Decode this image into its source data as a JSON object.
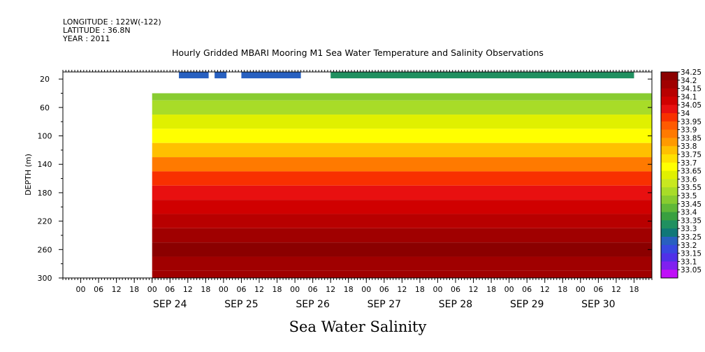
{
  "header": {
    "longitude": "LONGITUDE : 122W(-122)",
    "latitude": "LATITUDE : 36.8N",
    "year": "YEAR : 2011"
  },
  "chart_data": {
    "type": "heatmap",
    "title": "Hourly Gridded MBARI Mooring M1 Sea Water Temperature and Salinity Observations",
    "xlabel": "Sea Water Salinity",
    "ylabel": "DEPTH (m)",
    "y_ticks": [
      20,
      60,
      100,
      140,
      180,
      220,
      260,
      300
    ],
    "ylim": [
      10,
      300
    ],
    "x_hour_ticks": [
      "00",
      "06",
      "12",
      "18",
      "00",
      "06",
      "12",
      "18",
      "00",
      "06",
      "12",
      "18",
      "00",
      "06",
      "12",
      "18",
      "00",
      "06",
      "12",
      "18",
      "00",
      "06",
      "12",
      "18",
      "00",
      "06",
      "12",
      "18",
      "00",
      "06",
      "12",
      "18"
    ],
    "x_day_labels": [
      "SEP 24",
      "SEP 25",
      "SEP 26",
      "SEP 27",
      "SEP 28",
      "SEP 29",
      "SEP 30"
    ],
    "xlim_hours_from_sep23_00": [
      0,
      198
    ],
    "data_start_hour": 30,
    "colorbar_levels": [
      "34.25",
      "34.2",
      "34.15",
      "34.1",
      "34.05",
      "34",
      "33.95",
      "33.9",
      "33.85",
      "33.8",
      "33.75",
      "33.7",
      "33.65",
      "33.6",
      "33.55",
      "33.5",
      "33.45",
      "33.4",
      "33.35",
      "33.3",
      "33.25",
      "33.2",
      "33.15",
      "33.1",
      "33.05"
    ],
    "colorbar_colors": [
      "#8b0000",
      "#a00000",
      "#b80000",
      "#d00000",
      "#e81010",
      "#f83000",
      "#ff5a00",
      "#ff7a00",
      "#ff9a00",
      "#ffc000",
      "#ffe000",
      "#ffff00",
      "#e0f000",
      "#c8e820",
      "#a8dc28",
      "#88cc30",
      "#60b838",
      "#38a040",
      "#209060",
      "#107878",
      "#2860c0",
      "#3848e0",
      "#5030e8",
      "#8020f0",
      "#c010f8"
    ],
    "depth_profile": [
      {
        "depth": 20,
        "value": 33.3
      },
      {
        "depth": 40,
        "value": 33.5
      },
      {
        "depth": 60,
        "value": 33.55
      },
      {
        "depth": 80,
        "value": 33.65
      },
      {
        "depth": 100,
        "value": 33.7
      },
      {
        "depth": 120,
        "value": 33.8
      },
      {
        "depth": 140,
        "value": 33.9
      },
      {
        "depth": 160,
        "value": 34.0
      },
      {
        "depth": 180,
        "value": 34.05
      },
      {
        "depth": 200,
        "value": 34.1
      },
      {
        "depth": 220,
        "value": 34.15
      },
      {
        "depth": 240,
        "value": 34.2
      },
      {
        "depth": 260,
        "value": 34.25
      },
      {
        "depth": 280,
        "value": 34.2
      },
      {
        "depth": 300,
        "value": 34.2
      }
    ],
    "surface_segments": [
      {
        "start_hour": 39,
        "end_hour": 49,
        "value": 33.25
      },
      {
        "start_hour": 51,
        "end_hour": 55,
        "value": 33.25
      },
      {
        "start_hour": 60,
        "end_hour": 80,
        "value": 33.25
      },
      {
        "start_hour": 90,
        "end_hour": 192,
        "value": 33.35
      }
    ]
  }
}
